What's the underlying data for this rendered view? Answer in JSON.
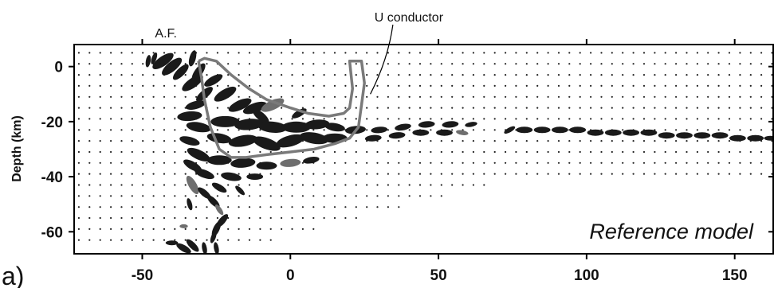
{
  "chart_data": {
    "type": "scatter",
    "title": "",
    "xlabel": "",
    "ylabel": "Depth (km)",
    "xlim": [
      -73,
      163
    ],
    "ylim": [
      -68,
      8
    ],
    "x_ticks": [
      -50,
      0,
      50,
      100,
      150
    ],
    "y_ticks": [
      0,
      -20,
      -40,
      -60
    ],
    "panel_label": "a)",
    "model_label": "Reference model",
    "annotations": {
      "af": {
        "text": "A.F.",
        "x": -42,
        "y": 8
      },
      "conductor": {
        "text": "U conductor",
        "x": 40,
        "y": 17,
        "arrow_to": [
          27,
          -10
        ]
      }
    },
    "conductor_outline": {
      "x": [
        -31,
        -29,
        -25,
        -20,
        -14,
        -8,
        0,
        6,
        13,
        18,
        20,
        21,
        20,
        24,
        25,
        24,
        23,
        20,
        15,
        8,
        0,
        -8,
        -15,
        -20,
        -24,
        -27,
        -29,
        -30,
        -31
      ],
      "y": [
        2,
        3,
        2,
        -3,
        -8,
        -12,
        -15,
        -17,
        -18,
        -17,
        -15,
        -8,
        2,
        2,
        -6,
        -14,
        -22,
        -26,
        -28,
        -30,
        -31,
        -32,
        -33,
        -33,
        -30,
        -22,
        -12,
        -4,
        2
      ]
    },
    "ellipses": [
      {
        "x": -48,
        "y": 2,
        "size": 3,
        "angle": -80,
        "shade": "dark"
      },
      {
        "x": -46,
        "y": 3,
        "size": 3,
        "angle": -70,
        "shade": "dark"
      },
      {
        "x": -43,
        "y": 2,
        "size": 6,
        "angle": -35,
        "shade": "dark"
      },
      {
        "x": -40,
        "y": 0,
        "size": 6,
        "angle": -40,
        "shade": "dark"
      },
      {
        "x": -37,
        "y": -2,
        "size": 5,
        "angle": -45,
        "shade": "dark"
      },
      {
        "x": -33,
        "y": 3,
        "size": 4,
        "angle": -75,
        "shade": "dark"
      },
      {
        "x": -31,
        "y": -2,
        "size": 5,
        "angle": -55,
        "shade": "dark"
      },
      {
        "x": -33,
        "y": -6,
        "size": 6,
        "angle": -35,
        "shade": "dark"
      },
      {
        "x": -29,
        "y": -10,
        "size": 5,
        "angle": -40,
        "shade": "dark"
      },
      {
        "x": -32,
        "y": -14,
        "size": 5,
        "angle": -15,
        "shade": "dark"
      },
      {
        "x": -34,
        "y": -18,
        "size": 6,
        "angle": -5,
        "shade": "dark"
      },
      {
        "x": -31,
        "y": -22,
        "size": 6,
        "angle": 10,
        "shade": "dark"
      },
      {
        "x": -34,
        "y": -27,
        "size": 5,
        "angle": 15,
        "shade": "dark"
      },
      {
        "x": -31,
        "y": -32,
        "size": 6,
        "angle": 25,
        "shade": "dark"
      },
      {
        "x": -33,
        "y": -36,
        "size": 5,
        "angle": 30,
        "shade": "dark"
      },
      {
        "x": -29,
        "y": -39,
        "size": 5,
        "angle": 20,
        "shade": "dark"
      },
      {
        "x": -33,
        "y": -43,
        "size": 5,
        "angle": 60,
        "shade": "gray"
      },
      {
        "x": -29,
        "y": -46,
        "size": 4,
        "angle": 40,
        "shade": "dark"
      },
      {
        "x": -26,
        "y": -49,
        "size": 4,
        "angle": 45,
        "shade": "dark"
      },
      {
        "x": -34,
        "y": -50,
        "size": 3,
        "angle": 75,
        "shade": "dark"
      },
      {
        "x": -24,
        "y": -52,
        "size": 3,
        "angle": 55,
        "shade": "gray"
      },
      {
        "x": -23,
        "y": -56,
        "size": 4,
        "angle": -50,
        "shade": "dark"
      },
      {
        "x": -25,
        "y": -59,
        "size": 4,
        "angle": -65,
        "shade": "dark"
      },
      {
        "x": -26,
        "y": -62,
        "size": 3,
        "angle": -70,
        "shade": "dark"
      },
      {
        "x": -36,
        "y": -58,
        "size": 2,
        "angle": 0,
        "shade": "gray"
      },
      {
        "x": -40,
        "y": -64,
        "size": 3,
        "angle": 0,
        "shade": "dark"
      },
      {
        "x": -36,
        "y": -66,
        "size": 4,
        "angle": 30,
        "shade": "dark"
      },
      {
        "x": -33,
        "y": -65,
        "size": 4,
        "angle": 45,
        "shade": "dark"
      },
      {
        "x": -29,
        "y": -66,
        "size": 3,
        "angle": 80,
        "shade": "dark"
      },
      {
        "x": -25,
        "y": -66,
        "size": 3,
        "angle": 80,
        "shade": "dark"
      },
      {
        "x": -26,
        "y": -5,
        "size": 5,
        "angle": -30,
        "shade": "dark"
      },
      {
        "x": -22,
        "y": -10,
        "size": 6,
        "angle": -30,
        "shade": "dark"
      },
      {
        "x": -17,
        "y": -14,
        "size": 6,
        "angle": -25,
        "shade": "dark"
      },
      {
        "x": -12,
        "y": -15,
        "size": 6,
        "angle": -20,
        "shade": "dark"
      },
      {
        "x": -6,
        "y": -14,
        "size": 6,
        "angle": -25,
        "shade": "gray"
      },
      {
        "x": -22,
        "y": -20,
        "size": 7,
        "angle": 0,
        "shade": "dark"
      },
      {
        "x": -14,
        "y": -21,
        "size": 7,
        "angle": -5,
        "shade": "dark"
      },
      {
        "x": -6,
        "y": -22,
        "size": 7,
        "angle": 5,
        "shade": "dark"
      },
      {
        "x": 2,
        "y": -22,
        "size": 7,
        "angle": 0,
        "shade": "dark"
      },
      {
        "x": 9,
        "y": -21,
        "size": 6,
        "angle": -5,
        "shade": "dark"
      },
      {
        "x": 15,
        "y": -22,
        "size": 5,
        "angle": 10,
        "shade": "dark"
      },
      {
        "x": -24,
        "y": -26,
        "size": 6,
        "angle": 10,
        "shade": "dark"
      },
      {
        "x": -16,
        "y": -27,
        "size": 7,
        "angle": -10,
        "shade": "dark"
      },
      {
        "x": -8,
        "y": -28,
        "size": 7,
        "angle": 20,
        "shade": "dark"
      },
      {
        "x": 0,
        "y": -27,
        "size": 7,
        "angle": -15,
        "shade": "dark"
      },
      {
        "x": 8,
        "y": -26,
        "size": 7,
        "angle": 10,
        "shade": "dark"
      },
      {
        "x": 15,
        "y": -26,
        "size": 6,
        "angle": 0,
        "shade": "dark"
      },
      {
        "x": -10,
        "y": -18,
        "size": 5,
        "angle": 40,
        "shade": "dark"
      },
      {
        "x": 3,
        "y": -17,
        "size": 4,
        "angle": -30,
        "shade": "dark"
      },
      {
        "x": -24,
        "y": -34,
        "size": 6,
        "angle": 0,
        "shade": "dark"
      },
      {
        "x": -16,
        "y": -35,
        "size": 6,
        "angle": -5,
        "shade": "dark"
      },
      {
        "x": -8,
        "y": -36,
        "size": 5,
        "angle": 0,
        "shade": "dark"
      },
      {
        "x": 0,
        "y": -35,
        "size": 5,
        "angle": -5,
        "shade": "gray"
      },
      {
        "x": 7,
        "y": -34,
        "size": 4,
        "angle": -10,
        "shade": "dark"
      },
      {
        "x": -20,
        "y": -40,
        "size": 5,
        "angle": 10,
        "shade": "dark"
      },
      {
        "x": -12,
        "y": -40,
        "size": 4,
        "angle": 0,
        "shade": "dark"
      },
      {
        "x": -24,
        "y": -44,
        "size": 4,
        "angle": 30,
        "shade": "dark"
      },
      {
        "x": -17,
        "y": -45,
        "size": 3,
        "angle": 45,
        "shade": "dark"
      },
      {
        "x": 22,
        "y": -23,
        "size": 5,
        "angle": -5,
        "shade": "dark"
      },
      {
        "x": 30,
        "y": -23,
        "size": 4,
        "angle": -5,
        "shade": "dark"
      },
      {
        "x": 38,
        "y": -22,
        "size": 4,
        "angle": -10,
        "shade": "dark"
      },
      {
        "x": 46,
        "y": -21,
        "size": 4,
        "angle": -5,
        "shade": "dark"
      },
      {
        "x": 54,
        "y": -21,
        "size": 4,
        "angle": -5,
        "shade": "dark"
      },
      {
        "x": 61,
        "y": -21,
        "size": 3,
        "angle": -10,
        "shade": "dark"
      },
      {
        "x": 28,
        "y": -26,
        "size": 4,
        "angle": -5,
        "shade": "dark"
      },
      {
        "x": 36,
        "y": -25,
        "size": 4,
        "angle": -5,
        "shade": "dark"
      },
      {
        "x": 44,
        "y": -24,
        "size": 4,
        "angle": 0,
        "shade": "dark"
      },
      {
        "x": 52,
        "y": -24,
        "size": 4,
        "angle": 0,
        "shade": "dark"
      },
      {
        "x": 58,
        "y": -24,
        "size": 3,
        "angle": 10,
        "shade": "gray"
      },
      {
        "x": 74,
        "y": -23,
        "size": 3,
        "angle": -30,
        "shade": "dark"
      },
      {
        "x": 79,
        "y": -23,
        "size": 4,
        "angle": 0,
        "shade": "dark"
      },
      {
        "x": 85,
        "y": -23,
        "size": 4,
        "angle": 0,
        "shade": "dark"
      },
      {
        "x": 91,
        "y": -23,
        "size": 4,
        "angle": 0,
        "shade": "dark"
      },
      {
        "x": 97,
        "y": -23,
        "size": 4,
        "angle": 0,
        "shade": "dark"
      },
      {
        "x": 103,
        "y": -24,
        "size": 4,
        "angle": 0,
        "shade": "dark"
      },
      {
        "x": 109,
        "y": -24,
        "size": 4,
        "angle": 0,
        "shade": "dark"
      },
      {
        "x": 115,
        "y": -24,
        "size": 4,
        "angle": 0,
        "shade": "dark"
      },
      {
        "x": 121,
        "y": -24,
        "size": 4,
        "angle": 0,
        "shade": "dark"
      },
      {
        "x": 127,
        "y": -25,
        "size": 4,
        "angle": 0,
        "shade": "dark"
      },
      {
        "x": 133,
        "y": -25,
        "size": 4,
        "angle": 0,
        "shade": "dark"
      },
      {
        "x": 139,
        "y": -25,
        "size": 4,
        "angle": 0,
        "shade": "dark"
      },
      {
        "x": 145,
        "y": -25,
        "size": 4,
        "angle": 0,
        "shade": "dark"
      },
      {
        "x": 151,
        "y": -26,
        "size": 4,
        "angle": 0,
        "shade": "dark"
      },
      {
        "x": 157,
        "y": -26,
        "size": 4,
        "angle": 0,
        "shade": "dark"
      },
      {
        "x": 162,
        "y": -26,
        "size": 3,
        "angle": 0,
        "shade": "dark"
      }
    ]
  }
}
